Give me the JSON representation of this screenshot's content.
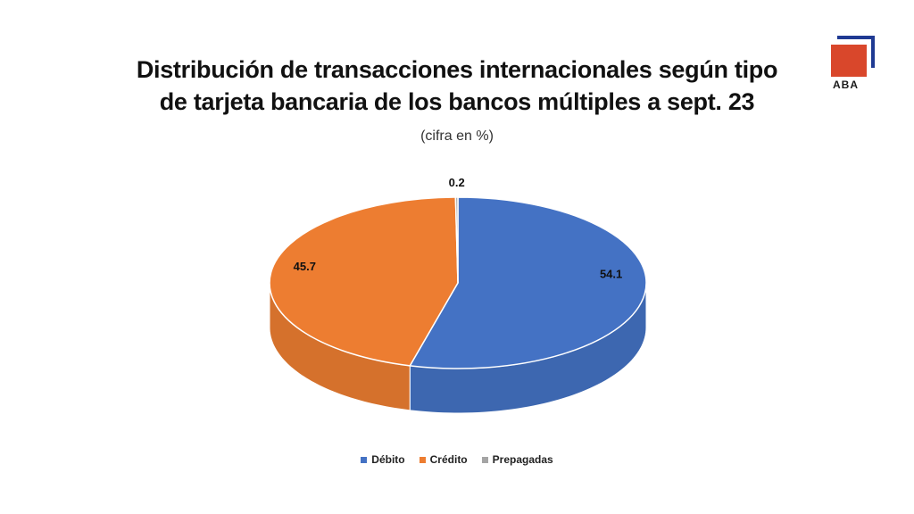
{
  "header": {
    "title_line1": "Distribución de transacciones internacionales según tipo",
    "title_line2": "de tarjeta bancaria de los bancos múltiples a sept. 23",
    "subtitle": "(cifra en %)"
  },
  "logo": {
    "text": "ABA"
  },
  "colors": {
    "debito": "#4472c4",
    "credito": "#ed7d31",
    "prepagadas": "#a5a5a5"
  },
  "chart_data": {
    "type": "pie",
    "categories": [
      "Débito",
      "Crédito",
      "Prepagadas"
    ],
    "values": [
      54.1,
      45.7,
      0.2
    ],
    "labels": [
      "54.1",
      "45.7",
      "0.2"
    ],
    "title": "Distribución de transacciones internacionales según tipo de tarjeta bancaria de los bancos múltiples a sept. 23",
    "subtitle": "(cifra en %)",
    "legend_position": "bottom",
    "style": "3d"
  }
}
